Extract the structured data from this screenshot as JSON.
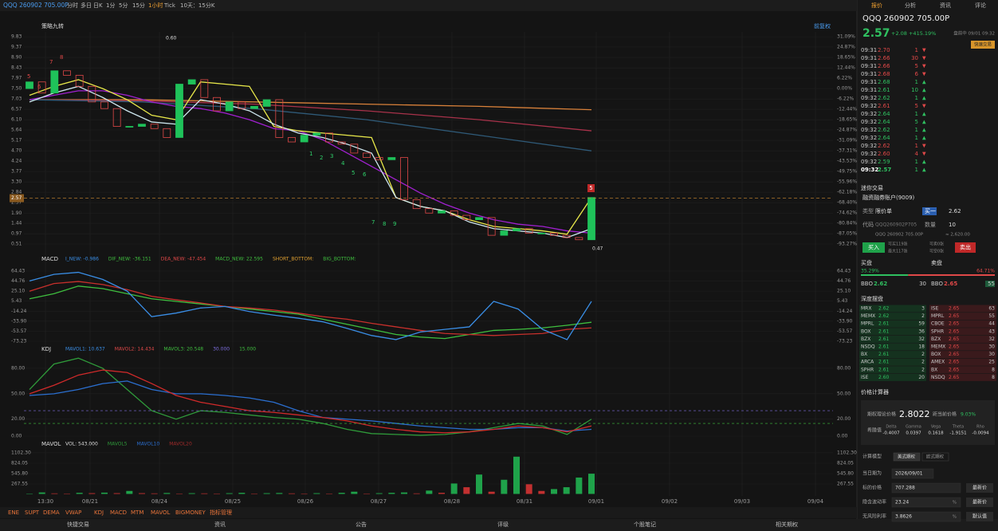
{
  "toolbar": {
    "symbol": "QQQ 260902 705.00P",
    "periods": [
      "分时",
      "多日",
      "日K",
      "1分",
      "5分",
      "15分",
      "1小时",
      "Tick",
      "10天：15分K"
    ]
  },
  "chart_header": {
    "strategy": "策略九转",
    "adjust": "前复权"
  },
  "annotations": {
    "high": "0.60",
    "low": "0.47",
    "buy_count": [
      "1",
      "2",
      "3",
      "4",
      "5",
      "6"
    ],
    "sell_count": [
      "7",
      "8",
      "9"
    ],
    "top_count": [
      "5",
      "6",
      "7",
      "8"
    ],
    "last_signal": "5"
  },
  "chart_data": [
    {
      "type": "candlestick",
      "open": [
        7.5,
        7.8,
        7.3,
        8.3,
        8.1,
        7.6,
        6.9,
        6.6,
        5.8,
        5.8,
        5.9,
        5.7,
        5.3,
        7.7,
        7.9,
        7.1,
        6.5,
        6.9,
        6.6,
        6.7,
        7.0,
        5.3,
        5.1,
        5.4,
        5.5,
        5.1,
        5.0,
        4.6,
        4.4,
        4.3,
        4.4,
        2.5,
        2.1,
        1.9,
        2.0,
        1.8,
        1.6,
        1.7,
        0.9,
        1.1,
        1.2,
        1.0,
        1.0,
        0.9,
        0.8,
        0.7
      ],
      "close": [
        7.8,
        7.3,
        8.3,
        8.1,
        7.6,
        6.9,
        6.6,
        5.8,
        5.8,
        5.9,
        5.7,
        5.3,
        7.7,
        7.9,
        7.1,
        6.5,
        6.9,
        6.6,
        6.7,
        7.0,
        5.3,
        5.1,
        5.4,
        5.5,
        5.1,
        5.0,
        4.6,
        4.4,
        4.3,
        4.4,
        2.5,
        2.1,
        1.9,
        2.0,
        1.8,
        1.6,
        1.7,
        0.9,
        1.1,
        1.2,
        1.0,
        1.0,
        0.9,
        0.8,
        0.7,
        2.6
      ],
      "up_color": "#1fc25a",
      "down_color": "#e04848",
      "lines": [
        {
          "color": "#d9813a",
          "values": [
            7.0,
            7.0,
            6.9,
            6.8,
            6.7,
            6.55
          ]
        },
        {
          "color": "#a8324a",
          "values": [
            7.0,
            6.95,
            6.8,
            6.5,
            6.1,
            5.6
          ]
        },
        {
          "color": "#2f5a78",
          "values": [
            7.0,
            6.9,
            6.6,
            6.1,
            5.4,
            4.7
          ]
        },
        {
          "color": "#a020d0",
          "values": [
            7.0,
            7.2,
            7.4,
            7.4,
            7.2,
            6.9,
            6.7,
            6.6,
            6.4,
            6.1,
            5.7,
            5.6,
            5.2,
            4.6,
            4.0,
            3.4,
            2.8,
            2.3,
            1.9,
            1.6,
            1.4,
            1.3,
            1.1,
            1.0
          ]
        },
        {
          "color": "#e8e84a",
          "values": [
            7.2,
            7.6,
            7.9,
            7.5,
            7.0,
            6.3,
            6.1,
            7.8,
            7.7,
            7.6,
            5.8,
            5.6,
            5.5,
            5.4,
            5.3,
            2.6,
            2.2,
            2.0,
            1.6,
            1.3,
            1.2,
            1.1,
            0.95,
            2.6
          ]
        },
        {
          "color": "#cfe8f0",
          "values": [
            6.9,
            7.3,
            7.6,
            7.1,
            6.5,
            6.0,
            5.9,
            7.0,
            6.8,
            6.5,
            5.9,
            5.5,
            5.3,
            5.0,
            4.6,
            2.6,
            2.2,
            2.0,
            1.5,
            1.2,
            1.1,
            1.0,
            0.8,
            1.2
          ]
        }
      ],
      "ylim": [
        0.08,
        10.05
      ],
      "yticks": [
        9.83,
        9.37,
        {
          "value": 8.9,
          "label": "8.90"
        },
        8.43,
        7.97,
        {
          "value": 7.5,
          "label": "7.50"
        },
        7.03,
        6.57,
        {
          "value": 6.1,
          "label": "6.10"
        },
        5.64,
        5.17,
        {
          "value": 4.7,
          "label": "4.70"
        },
        4.24,
        3.77,
        {
          "value": 3.3,
          "label": "3.30"
        },
        2.84,
        2.37,
        {
          "value": 1.9,
          "label": "1.90"
        },
        1.44,
        0.97,
        0.51
      ],
      "y2lim": [
        -98.93,
        34.0
      ],
      "y2ticks": [
        {
          "value": 31.09,
          "label": "31.09%"
        },
        {
          "value": 24.87,
          "label": "24.87%"
        },
        {
          "value": 18.65,
          "label": "18.65%"
        },
        {
          "value": 12.44,
          "label": "12.44%"
        },
        {
          "value": 6.22,
          "label": "6.22%"
        },
        {
          "value": 0,
          "label": "0.00%"
        },
        {
          "value": -6.22,
          "label": "-6.22%"
        },
        {
          "value": -12.44,
          "label": "-12.44%"
        },
        {
          "value": -18.65,
          "label": "-18.65%"
        },
        {
          "value": -24.87,
          "label": "-24.87%"
        },
        {
          "value": -31.09,
          "label": "-31.09%"
        },
        {
          "value": -37.31,
          "label": "-37.31%"
        },
        {
          "value": -43.53,
          "label": "-43.53%"
        },
        {
          "value": -49.75,
          "label": "-49.75%"
        },
        {
          "value": -55.96,
          "label": "-55.96%"
        },
        {
          "value": -62.18,
          "label": "-62.18%"
        },
        {
          "value": -68.4,
          "label": "-68.40%"
        },
        {
          "value": -74.62,
          "label": "-74.62%"
        },
        {
          "value": -80.84,
          "label": "-80.84%"
        },
        {
          "value": -87.05,
          "label": "-87.05%"
        },
        {
          "value": -93.27,
          "label": "-93.27%"
        }
      ]
    },
    {
      "type": "line",
      "title": "MACD",
      "legend": [
        {
          "text": "I_NEW: -0.986",
          "color": "#3a8ee6"
        },
        {
          "text": "DIF_NEW: -36.151",
          "color": "#3fbf3f"
        },
        {
          "text": "DEA_NEW: -47.454",
          "color": "#e04848"
        },
        {
          "text": "MACD_NEW: 22.595",
          "color": "#3fbf3f"
        },
        {
          "text": "SHORT_BOTTOM:",
          "color": "#e0a030"
        },
        {
          "text": "BIG_BOTTOM:",
          "color": "#3fbf3f"
        }
      ],
      "lines": [
        {
          "color": "#3fbf3f",
          "values": [
            10,
            20,
            35,
            30,
            20,
            10,
            5,
            0,
            -5,
            -10,
            -15,
            -20,
            -30,
            -40,
            -50,
            -60,
            -65,
            -68,
            -60,
            -52,
            -50,
            -47,
            -42,
            -36
          ]
        },
        {
          "color": "#c8302c",
          "values": [
            25,
            40,
            44,
            38,
            28,
            15,
            8,
            2,
            -5,
            -8,
            -12,
            -18,
            -25,
            -30,
            -38,
            -45,
            -52,
            -58,
            -60,
            -62,
            -60,
            -58,
            -50,
            -47
          ]
        },
        {
          "color": "#3a8ee6",
          "values": [
            45,
            58,
            62,
            48,
            25,
            -25,
            -18,
            -8,
            -5,
            -15,
            -22,
            -28,
            -35,
            -48,
            -62,
            -70,
            -55,
            -50,
            -45,
            5,
            -10,
            -50,
            -70,
            5
          ]
        }
      ],
      "ylim": [
        -79.5,
        73.8
      ],
      "yticks": [
        64.43,
        44.76,
        {
          "value": 25.1,
          "label": "25.10"
        },
        5.43,
        -14.24,
        {
          "value": -33.9,
          "label": "-33.90"
        },
        -53.57,
        -73.23
      ]
    },
    {
      "type": "line",
      "title": "KDJ",
      "legend": [
        {
          "text": "MAVOL1: 10.637",
          "color": "#3a8ee6"
        },
        {
          "text": "MAVOL2: 14.434",
          "color": "#e04848"
        },
        {
          "text": "MAVOL3: 20.548",
          "color": "#3fbf3f"
        },
        {
          "text": "30.000",
          "color": "#7d6ee0"
        },
        {
          "text": "15.000",
          "color": "#3fbf3f"
        }
      ],
      "lines": [
        {
          "color": "#2f9a3a",
          "values": [
            55,
            85,
            92,
            80,
            55,
            30,
            20,
            30,
            28,
            25,
            22,
            20,
            15,
            8,
            3,
            2,
            1,
            2,
            5,
            10,
            15,
            12,
            2,
            20
          ]
        },
        {
          "color": "#2b6fd0",
          "values": [
            48,
            50,
            55,
            62,
            65,
            55,
            50,
            50,
            48,
            45,
            40,
            30,
            22,
            20,
            18,
            15,
            12,
            10,
            8,
            8,
            10,
            10,
            6,
            8
          ]
        },
        {
          "color": "#d02a2a",
          "values": [
            50,
            60,
            72,
            78,
            75,
            62,
            48,
            40,
            35,
            30,
            28,
            25,
            22,
            18,
            12,
            8,
            5,
            4,
            5,
            8,
            12,
            10,
            5,
            12
          ]
        }
      ],
      "ylim": [
        -4.7,
        95
      ],
      "yticks": [
        {
          "value": 80,
          "label": "80.00"
        },
        {
          "value": 50,
          "label": "50.00"
        },
        {
          "value": 20,
          "label": "20.00"
        },
        {
          "value": 0,
          "label": "0.00"
        }
      ]
    },
    {
      "type": "bar",
      "title": "MAVOL",
      "legend": [
        {
          "text": "VOL: 543.000",
          "color": "#dddddd"
        },
        {
          "text": "MAVOL5",
          "color": "#2f9a3a"
        },
        {
          "text": "MAVOL10",
          "color": "#2b6fd0"
        },
        {
          "text": "MAVOL20",
          "color": "#a02a2a"
        }
      ],
      "values": [
        10,
        40,
        15,
        10,
        30,
        20,
        35,
        20,
        80,
        20,
        15,
        25,
        10,
        20,
        15,
        10,
        20,
        30,
        10,
        20,
        25,
        15,
        10,
        20,
        10,
        30,
        60,
        10,
        20,
        30,
        40,
        15,
        90,
        30,
        280,
        180,
        520,
        60,
        380,
        1000,
        260,
        80,
        130,
        180,
        440,
        543
      ],
      "up_color": "#1fa24a",
      "down_color": "#c23030",
      "ylim": [
        0,
        1209
      ],
      "yticks": [
        {
          "value": 1102.3,
          "label": "1102.30"
        },
        824.05,
        {
          "value": 545.8,
          "label": "545.80"
        },
        267.55
      ]
    }
  ],
  "time_axis": [
    "13:30",
    "08/21",
    "08/24",
    "08/25",
    "08/26",
    "08/27",
    "08/28",
    "08/31",
    "09/01",
    "09/02",
    "09/03",
    "09/04"
  ],
  "indicator_bar": [
    "ENE",
    "SUPT",
    "DEMA",
    "VWAP",
    "KDJ",
    "MACD",
    "MTM",
    "MAVOL",
    "BIGMONEY",
    "指标管理"
  ],
  "footer": [
    "快捷交易",
    "资讯",
    "公告",
    "评级",
    "个股笔记",
    "相关期权"
  ],
  "quote": {
    "tabs": [
      "报价",
      "分析",
      "资讯",
      "评论"
    ],
    "title": "QQQ 260902 705.00P",
    "price": "2.57",
    "change": "+2.08 +415.19%",
    "status": "盘前中 09/01 09:32",
    "quick": "快速交易",
    "trades": [
      [
        "09:31",
        "2.70",
        "1",
        "down"
      ],
      [
        "09:31",
        "2.66",
        "30",
        "down"
      ],
      [
        "09:31",
        "2.66",
        "5",
        "down"
      ],
      [
        "09:31",
        "2.68",
        "6",
        "down"
      ],
      [
        "09:31",
        "2.68",
        "1",
        "up"
      ],
      [
        "09:31",
        "2.61",
        "10",
        "up"
      ],
      [
        "09:32",
        "2.62",
        "1",
        "up"
      ],
      [
        "09:32",
        "2.61",
        "5",
        "down"
      ],
      [
        "09:32",
        "2.64",
        "1",
        "up"
      ],
      [
        "09:32",
        "2.64",
        "5",
        "up"
      ],
      [
        "09:32",
        "2.62",
        "1",
        "up"
      ],
      [
        "09:32",
        "2.64",
        "1",
        "up"
      ],
      [
        "09:32",
        "2.62",
        "1",
        "down"
      ],
      [
        "09:32",
        "2.60",
        "4",
        "down"
      ],
      [
        "09:32",
        "2.59",
        "1",
        "up"
      ],
      [
        "09:32",
        "2.57",
        "1",
        "up"
      ]
    ]
  },
  "trade": {
    "title": "迷你交易",
    "account": "融资融券账户(9009)",
    "type_label": "类型",
    "type": "限价单",
    "level": "买一",
    "price": "2.62",
    "code_label": "代码",
    "code": "QQQ260902P705",
    "qty_label": "数量",
    "qty": "10",
    "name": "QQQ 260902 705.00P",
    "amount": "≈ 2,620.00",
    "buy": "买入",
    "sell": "卖出",
    "can_buy": "可买119张",
    "max": "最大117张",
    "can_sell": "可卖0张",
    "can_short": "可空0张"
  },
  "book": {
    "bid_title": "买盘",
    "ask_title": "卖盘",
    "bid_pct": "35.29%",
    "ask_pct": "64.71%",
    "bbo": "BBO",
    "bbo_bid": "2.62",
    "bbo_bid_size": "30",
    "bbo_ask": "2.65",
    "bbo_ask_size": "55",
    "depth_title": "深度摆盘",
    "bids": [
      [
        "MRX",
        "2.62",
        "3"
      ],
      [
        "MEMX",
        "2.62",
        "2"
      ],
      [
        "MPRL",
        "2.61",
        "59"
      ],
      [
        "BOX",
        "2.61",
        "36"
      ],
      [
        "BZX",
        "2.61",
        "32"
      ],
      [
        "NSDQ",
        "2.61",
        "18"
      ],
      [
        "BX",
        "2.61",
        "2"
      ],
      [
        "ARCA",
        "2.61",
        "2"
      ],
      [
        "SPHR",
        "2.61",
        "2"
      ],
      [
        "ISE",
        "2.60",
        "20"
      ]
    ],
    "asks": [
      [
        "ISE",
        "2.65",
        "63"
      ],
      [
        "MPRL",
        "2.65",
        "55"
      ],
      [
        "CBOE",
        "2.65",
        "44"
      ],
      [
        "SPHR",
        "2.65",
        "43"
      ],
      [
        "BZX",
        "2.65",
        "32"
      ],
      [
        "MEMX",
        "2.65",
        "30"
      ],
      [
        "BOX",
        "2.65",
        "30"
      ],
      [
        "AMEX",
        "2.65",
        "25"
      ],
      [
        "BX",
        "2.65",
        "8"
      ],
      [
        "NSDQ",
        "2.65",
        "8"
      ]
    ]
  },
  "calc": {
    "title": "价格计算器",
    "theo_label": "期权理论价格",
    "theo": "2.8022",
    "diff_label": "距当前价格",
    "diff": "9.03%",
    "greek_label": "希腊值",
    "greeks": [
      [
        "Delta",
        "-0.4007"
      ],
      [
        "Gamma",
        "0.0397"
      ],
      [
        "Vega",
        "0.1618"
      ],
      [
        "Theta",
        "-1.9151"
      ],
      [
        "Rho",
        "-0.0094"
      ]
    ],
    "model_label": "计算模型",
    "models": [
      "美式期权",
      "欧式期权"
    ],
    "rows": [
      [
        "当日期为",
        "2026/09/01",
        ""
      ],
      [
        "标的价格",
        "707.288",
        "最新价"
      ],
      [
        "隐含波动率",
        "23.24",
        "最新价"
      ],
      [
        "无风险利率",
        "3.8626",
        "默认值"
      ]
    ],
    "pct": "%"
  }
}
